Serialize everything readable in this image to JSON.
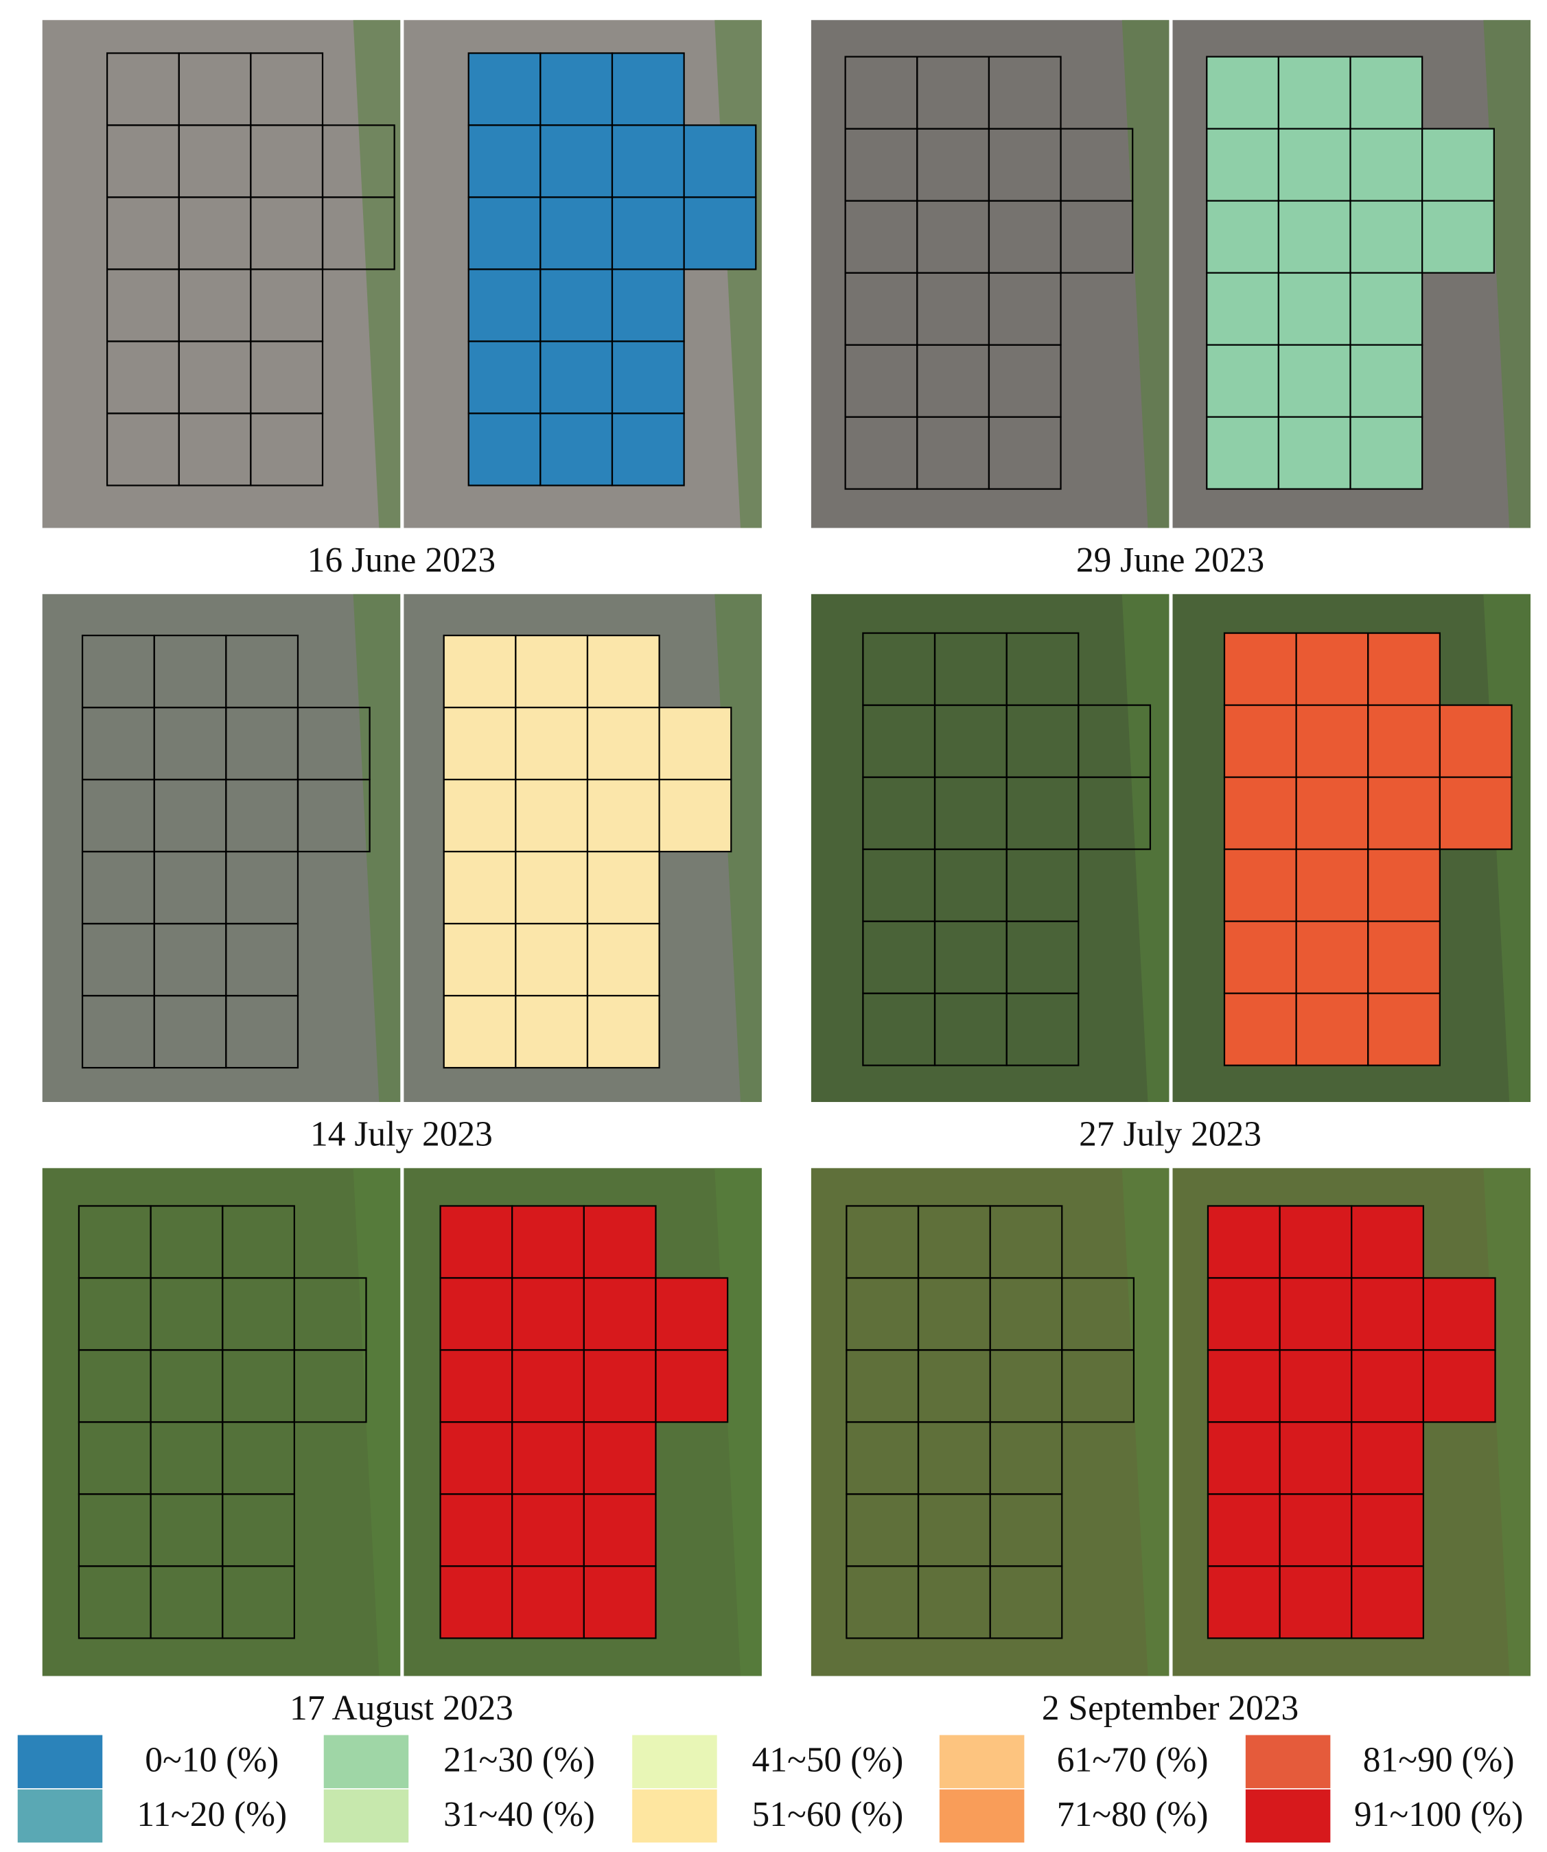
{
  "panels": [
    {
      "caption": "16 June 2023",
      "photo_color": "#8a8580",
      "overlay_color": "#2b83ba"
    },
    {
      "caption": "29 June 2023",
      "photo_color": "#6e6b66",
      "overlay_color": "#8fcfa8"
    },
    {
      "caption": "14 July 2023",
      "photo_color": "#6f746a",
      "overlay_color": "#fbe6aa"
    },
    {
      "caption": "27 July 2023",
      "photo_color": "#3f5a2c",
      "overlay_color": "#ea5a33"
    },
    {
      "caption": "17 August 2023",
      "photo_color": "#4a6a2e",
      "overlay_color": "#d7191c"
    },
    {
      "caption": "2 September 2023",
      "photo_color": "#56682e",
      "overlay_color": "#d7191c"
    }
  ],
  "legend": [
    {
      "label": "0~10 (%)",
      "color": "#2b83ba"
    },
    {
      "label": "11~20 (%)",
      "color": "#5aa8b4"
    },
    {
      "label": "21~30 (%)",
      "color": "#9fd6a6"
    },
    {
      "label": "31~40 (%)",
      "color": "#c7e8ad"
    },
    {
      "label": "41~50 (%)",
      "color": "#e8f6b6"
    },
    {
      "label": "51~60 (%)",
      "color": "#fee6a0"
    },
    {
      "label": "61~70 (%)",
      "color": "#fdc47f"
    },
    {
      "label": "71~80 (%)",
      "color": "#f99d59"
    },
    {
      "label": "81~90 (%)",
      "color": "#e55b3b"
    },
    {
      "label": "91~100 (%)",
      "color": "#d7191c"
    }
  ]
}
